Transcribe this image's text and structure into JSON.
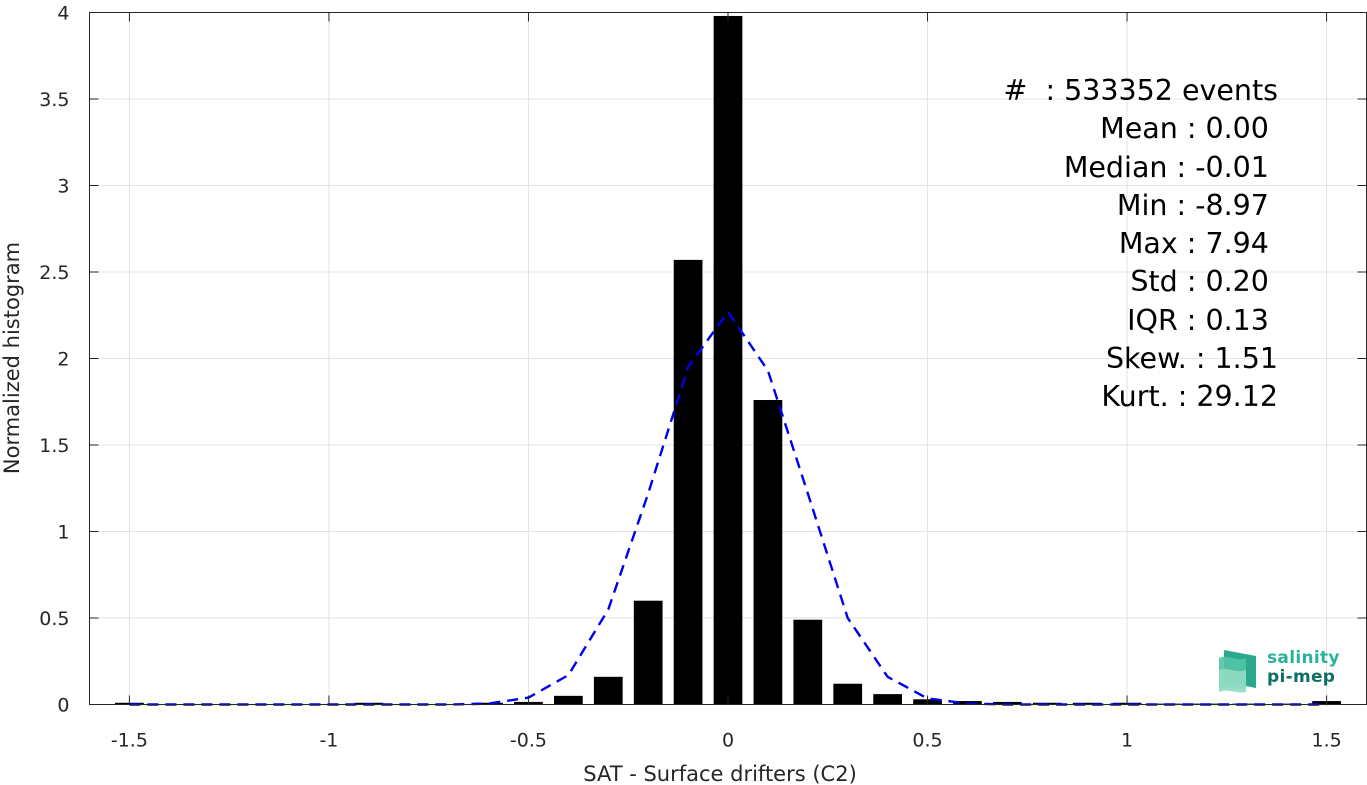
{
  "chart_data": {
    "type": "bar",
    "xlabel": "SAT - Surface drifters (C2)",
    "ylabel": "Normalized histogram",
    "xlim": [
      -1.6,
      1.6
    ],
    "ylim": [
      0,
      4
    ],
    "xticks": [
      "-1.5",
      "-1",
      "-0.5",
      "0",
      "0.5",
      "1",
      "1.5"
    ],
    "yticks": [
      "0",
      "0.5",
      "1",
      "1.5",
      "2",
      "2.5",
      "3",
      "3.5",
      "4"
    ],
    "grid": true,
    "bar_color": "#000000",
    "fit_color": "#0000ee",
    "bins": [
      -1.5,
      -1.4,
      -1.3,
      -1.2,
      -1.1,
      -1.0,
      -0.9,
      -0.8,
      -0.7,
      -0.6,
      -0.5,
      -0.4,
      -0.3,
      -0.2,
      -0.1,
      0.0,
      0.1,
      0.2,
      0.3,
      0.4,
      0.5,
      0.6,
      0.7,
      0.8,
      0.9,
      1.0,
      1.1,
      1.2,
      1.3,
      1.4,
      1.5
    ],
    "values": [
      0.01,
      0.0,
      0.0,
      0.0,
      0.0,
      0.0,
      0.01,
      0.0,
      0.0,
      0.01,
      0.015,
      0.05,
      0.16,
      0.6,
      2.57,
      3.98,
      1.76,
      0.49,
      0.12,
      0.06,
      0.03,
      0.02,
      0.015,
      0.01,
      0.01,
      0.01,
      0.005,
      0.005,
      0.005,
      0.005,
      0.02
    ],
    "fit": {
      "style": "dashed",
      "x": [
        -1.5,
        -1.4,
        -1.3,
        -1.2,
        -1.1,
        -1.0,
        -0.9,
        -0.8,
        -0.7,
        -0.6,
        -0.5,
        -0.4,
        -0.3,
        -0.2,
        -0.1,
        0.0,
        0.1,
        0.2,
        0.3,
        0.4,
        0.5,
        0.6,
        0.7,
        0.8,
        0.9,
        1.0,
        1.1,
        1.2,
        1.3,
        1.4,
        1.5
      ],
      "y": [
        0,
        0,
        0,
        0,
        0,
        0,
        0,
        0,
        0,
        0.005,
        0.04,
        0.17,
        0.55,
        1.22,
        1.95,
        2.27,
        1.93,
        1.22,
        0.5,
        0.16,
        0.035,
        0.005,
        0,
        0,
        0,
        0,
        0,
        0,
        0,
        0,
        0
      ]
    }
  },
  "stats": [
    "#  : 533352 events",
    "Mean : 0.00 ",
    "Median : -0.01 ",
    "Min : -8.97 ",
    "Max : 7.94 ",
    "Std : 0.20 ",
    "IQR : 0.13 ",
    "Skew. : 1.51",
    "Kurt. : 29.12"
  ],
  "logo": {
    "line1": "salinity",
    "line2": "pi-mep"
  }
}
